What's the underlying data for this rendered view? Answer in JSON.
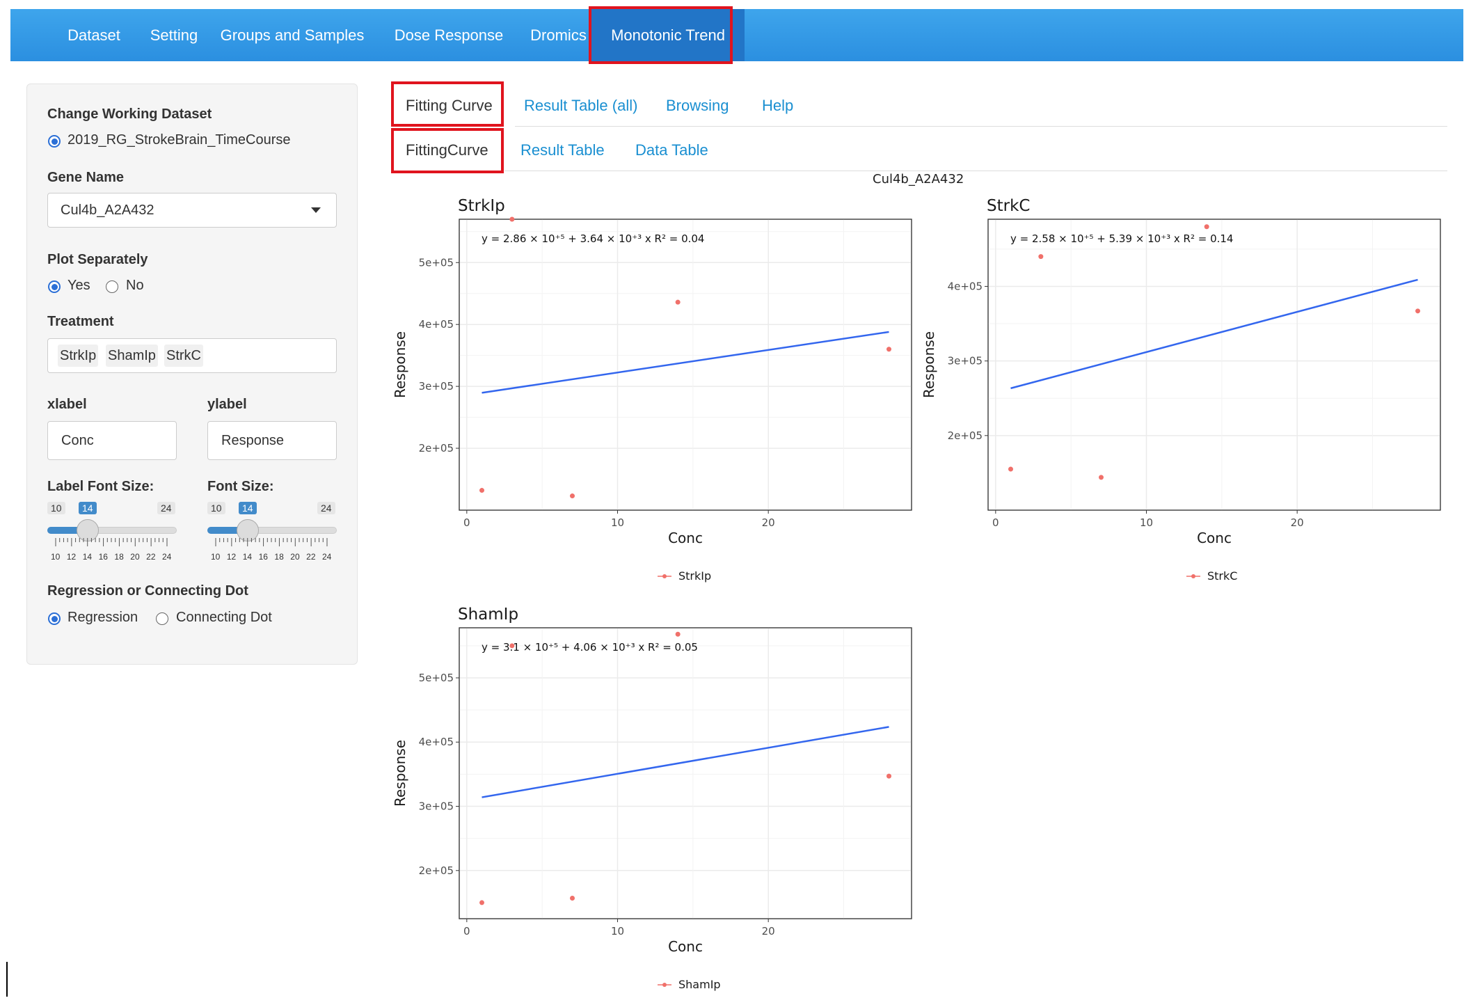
{
  "nav": {
    "items": [
      "Dataset",
      "Setting",
      "Groups and Samples",
      "Dose Response",
      "Dromics",
      "Monotonic Trend"
    ],
    "active": "Monotonic Trend"
  },
  "sidebar": {
    "dataset_label": "Change Working Dataset",
    "dataset_option": "2019_RG_StrokeBrain_TimeCourse",
    "gene_label": "Gene Name",
    "gene_value": "Cul4b_A2A432",
    "plot_sep_label": "Plot Separately",
    "plot_sep_yes": "Yes",
    "plot_sep_no": "No",
    "plot_sep_selected": "Yes",
    "treatment_label": "Treatment",
    "treatments": [
      "StrkIp",
      "ShamIp",
      "StrkC"
    ],
    "xlabel_label": "xlabel",
    "xlabel_value": "Conc",
    "ylabel_label": "ylabel",
    "ylabel_value": "Response",
    "label_font_label": "Label Font Size:",
    "font_size_label": "Font Size:",
    "slider_min": "10",
    "slider_max": "24",
    "label_font_value": "14",
    "font_size_value": "14",
    "slider_fraction": 0.2857,
    "slider_ticks": [
      "10",
      "12",
      "14",
      "16",
      "18",
      "20",
      "22",
      "24"
    ],
    "reg_label": "Regression or Connecting Dot",
    "reg_option": "Regression",
    "dot_option": "Connecting Dot",
    "reg_selected": "Regression"
  },
  "tabs": {
    "main": [
      "Fitting Curve",
      "Result Table (all)",
      "Browsing",
      "Help"
    ],
    "main_active": "Fitting Curve",
    "sub": [
      "FittingCurve",
      "Result Table",
      "Data Table"
    ],
    "sub_active": "FittingCurve"
  },
  "plot_title": "Cul4b_A2A432",
  "colors": {
    "accent": "#2b8fe0",
    "highlight": "#e0141e",
    "line": "#3366ee",
    "points": "#f0706a"
  },
  "chart_data": [
    {
      "type": "scatter",
      "title": "StrkIp",
      "xlabel": "Conc",
      "ylabel": "Response",
      "legend": "StrkIp",
      "xlim": [
        -0.5,
        29.5
      ],
      "ylim": [
        100000,
        570000
      ],
      "xticks": [
        "0",
        "10",
        "20"
      ],
      "yticks": [
        "2e+05",
        "3e+05",
        "4e+05",
        "5e+05"
      ],
      "equation": "y = 2.86 × 10⁺⁵ + 3.64 × 10⁺³ x   R² = 0.04",
      "points": [
        [
          1,
          132000
        ],
        [
          3,
          570000
        ],
        [
          7,
          123000
        ],
        [
          14,
          436000
        ],
        [
          28,
          360000
        ]
      ],
      "fit": {
        "intercept": 286000,
        "slope": 3640,
        "x_range": [
          1,
          28
        ]
      }
    },
    {
      "type": "scatter",
      "title": "StrkC",
      "xlabel": "Conc",
      "ylabel": "Response",
      "legend": "StrkC",
      "xlim": [
        -0.5,
        29.5
      ],
      "ylim": [
        100000,
        490000
      ],
      "xticks": [
        "0",
        "10",
        "20"
      ],
      "yticks": [
        "2e+05",
        "3e+05",
        "4e+05"
      ],
      "equation": "y = 2.58 × 10⁺⁵ + 5.39 × 10⁺³ x   R² = 0.14",
      "points": [
        [
          1,
          155000
        ],
        [
          3,
          440000
        ],
        [
          7,
          144000
        ],
        [
          14,
          480000
        ],
        [
          28,
          367000
        ]
      ],
      "fit": {
        "intercept": 258000,
        "slope": 5390,
        "x_range": [
          1,
          28
        ]
      }
    },
    {
      "type": "scatter",
      "title": "ShamIp",
      "xlabel": "Conc",
      "ylabel": "Response",
      "legend": "ShamIp",
      "xlim": [
        -0.5,
        29.5
      ],
      "ylim": [
        125000,
        578000
      ],
      "xticks": [
        "0",
        "10",
        "20"
      ],
      "yticks": [
        "2e+05",
        "3e+05",
        "4e+05",
        "5e+05"
      ],
      "equation": "y = 3.1 × 10⁺⁵ + 4.06 × 10⁺³ x   R² = 0.05",
      "points": [
        [
          1,
          150000
        ],
        [
          3,
          550000
        ],
        [
          7,
          157000
        ],
        [
          14,
          568000
        ],
        [
          28,
          347000
        ]
      ],
      "fit": {
        "intercept": 310000,
        "slope": 4060,
        "x_range": [
          1,
          28
        ]
      }
    }
  ]
}
